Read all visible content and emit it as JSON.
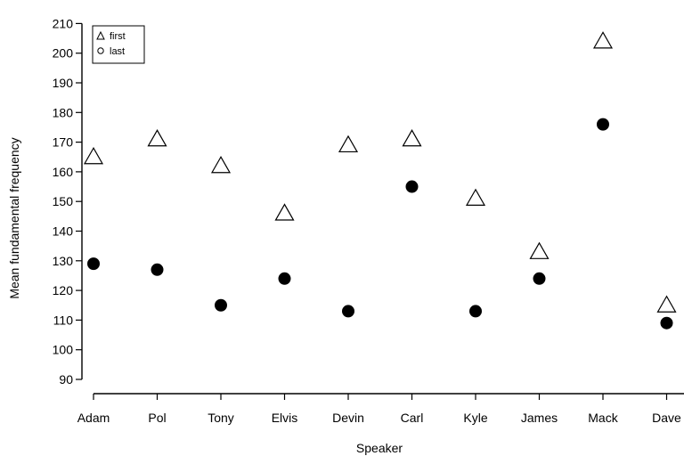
{
  "chart_data": {
    "type": "scatter",
    "xlabel": "Speaker",
    "ylabel": "Mean fundamental frequency",
    "categories": [
      "Adam",
      "Pol",
      "Tony",
      "Elvis",
      "Devin",
      "Carl",
      "Kyle",
      "James",
      "Mack",
      "Dave"
    ],
    "ylim": [
      85,
      212
    ],
    "yticks": [
      90,
      100,
      110,
      120,
      130,
      140,
      150,
      160,
      170,
      180,
      190,
      200,
      210
    ],
    "grid": false,
    "legend_position": "top-left",
    "series": [
      {
        "name": "first",
        "marker": "open-triangle",
        "values": [
          165,
          171,
          162,
          146,
          169,
          171,
          151,
          133,
          204,
          115
        ]
      },
      {
        "name": "last",
        "marker": "filled-circle",
        "values": [
          129,
          127,
          115,
          124,
          113,
          155,
          113,
          124,
          176,
          109
        ]
      }
    ]
  }
}
